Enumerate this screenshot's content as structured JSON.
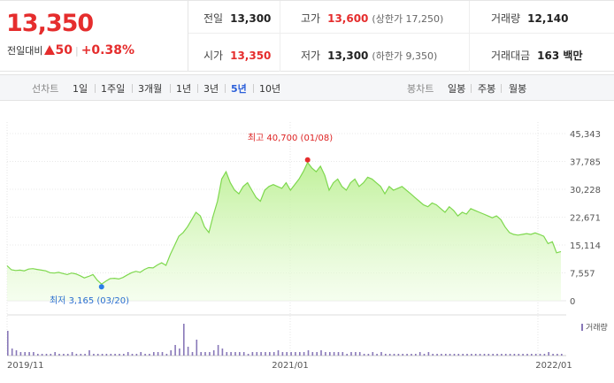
{
  "summary": {
    "price": "13,350",
    "change_label": "전일대비",
    "change_value": "50",
    "change_pct": "+0.38%",
    "prev_close_label": "전일",
    "prev_close": "13,300",
    "high_label": "고가",
    "high": "13,600",
    "upper_limit": "(상한가 17,250)",
    "volume_label": "거래량",
    "volume": "12,140",
    "open_label": "시가",
    "open": "13,350",
    "low_label": "저가",
    "low": "13,300",
    "lower_limit": "(하한가 9,350)",
    "trade_value_label": "거래대금",
    "trade_value": "163 백만"
  },
  "toolbar": {
    "line_chart_label": "선차트",
    "periods": [
      "1일",
      "1주일",
      "3개월",
      "1년",
      "3년",
      "5년",
      "10년"
    ],
    "active_period": "5년",
    "candle_label": "봉차트",
    "candles": [
      "일봉",
      "주봉",
      "월봉"
    ]
  },
  "colors": {
    "up": "#e52d2d",
    "line": "#7ed84e",
    "low_marker": "#2b7ee8",
    "volume": "#8878b8"
  },
  "chart_data": {
    "type": "area",
    "x_ticks": [
      "2019/11",
      "2021/01",
      "2022/01"
    ],
    "y_ticks": [
      "45,343",
      "37,785",
      "30,228",
      "22,671",
      "15,114",
      "7,557",
      "0"
    ],
    "ylim": [
      0,
      45343
    ],
    "max_annotation": "최고 40,700 (01/08)",
    "min_annotation": "최저 3,165 (03/20)",
    "volume_legend": "거래량",
    "series": [
      {
        "values": [
          9500,
          8400,
          8200,
          8300,
          8100,
          8600,
          8700,
          8500,
          8300,
          8100,
          7600,
          7500,
          7700,
          7400,
          7100,
          7500,
          7300,
          6800,
          6200,
          6600,
          7100,
          5600,
          4500,
          5300,
          6000,
          6100,
          5900,
          6300,
          7000,
          7600,
          8000,
          7700,
          8500,
          9000,
          8900,
          9700,
          10300,
          9600,
          12500,
          15000,
          17500,
          18500,
          20000,
          22000,
          24000,
          23000,
          20000,
          18500,
          23000,
          27000,
          33000,
          35000,
          32000,
          30000,
          29000,
          31000,
          32000,
          30000,
          28000,
          27000,
          30000,
          31000,
          31500,
          31000,
          30500,
          32000,
          30000,
          31500,
          33000,
          35000,
          37500,
          36000,
          35000,
          36500,
          34000,
          30000,
          32000,
          33000,
          31000,
          30000,
          32000,
          33000,
          31000,
          32000,
          33500,
          33000,
          32000,
          31000,
          29000,
          31000,
          30000,
          30500,
          31000,
          30000,
          29000,
          28000,
          27000,
          26000,
          25500,
          26500,
          26000,
          25000,
          24000,
          25500,
          24500,
          23000,
          24000,
          23500,
          25000,
          24500,
          24000,
          23500,
          23000,
          22500,
          23000,
          22000,
          20000,
          18500,
          18000,
          17800,
          18000,
          18200,
          18000,
          18400,
          18000,
          17500,
          15500,
          16000,
          13000,
          13350
        ]
      }
    ],
    "volume_series": [
      14,
      4,
      3,
      2,
      2,
      2,
      2,
      1,
      1,
      1,
      1,
      2,
      1,
      1,
      1,
      2,
      1,
      1,
      1,
      3,
      1,
      1,
      1,
      1,
      1,
      1,
      1,
      1,
      2,
      1,
      1,
      2,
      1,
      1,
      2,
      2,
      2,
      1,
      3,
      6,
      4,
      18,
      5,
      2,
      9,
      2,
      2,
      2,
      3,
      6,
      4,
      2,
      2,
      2,
      2,
      2,
      1,
      2,
      2,
      2,
      2,
      2,
      2,
      3,
      2,
      2,
      2,
      2,
      2,
      2,
      3,
      2,
      2,
      3,
      2,
      2,
      2,
      2,
      2,
      1,
      2,
      2,
      2,
      1,
      1,
      2,
      1,
      2,
      1,
      1,
      1,
      1,
      1,
      1,
      1,
      1,
      2,
      1,
      2,
      1,
      1,
      1,
      1,
      1,
      1,
      1,
      1,
      1,
      1,
      1,
      1,
      1,
      1,
      1,
      1,
      1,
      1,
      1,
      1,
      1,
      1,
      1,
      1,
      1,
      1,
      1,
      2,
      1,
      1,
      1
    ]
  }
}
